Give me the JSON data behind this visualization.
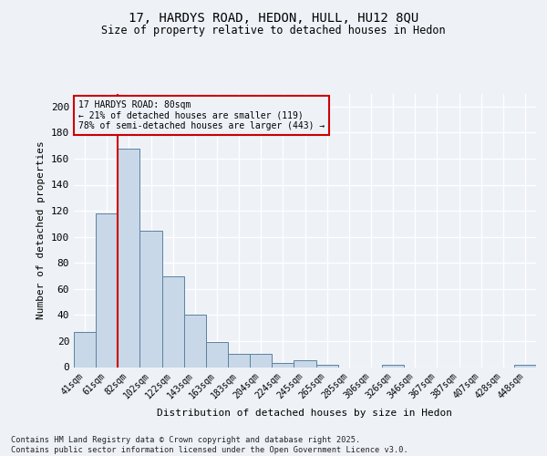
{
  "title_line1": "17, HARDYS ROAD, HEDON, HULL, HU12 8QU",
  "title_line2": "Size of property relative to detached houses in Hedon",
  "xlabel": "Distribution of detached houses by size in Hedon",
  "ylabel": "Number of detached properties",
  "categories": [
    "41sqm",
    "61sqm",
    "82sqm",
    "102sqm",
    "122sqm",
    "143sqm",
    "163sqm",
    "183sqm",
    "204sqm",
    "224sqm",
    "245sqm",
    "265sqm",
    "285sqm",
    "306sqm",
    "326sqm",
    "346sqm",
    "367sqm",
    "387sqm",
    "407sqm",
    "428sqm",
    "448sqm"
  ],
  "values": [
    27,
    118,
    168,
    105,
    70,
    40,
    19,
    10,
    10,
    3,
    5,
    2,
    0,
    0,
    2,
    0,
    0,
    0,
    0,
    0,
    2
  ],
  "bar_color": "#c8d8e8",
  "bar_edge_color": "#5a82a0",
  "vline_color": "#cc0000",
  "annotation_text": "17 HARDYS ROAD: 80sqm\n← 21% of detached houses are smaller (119)\n78% of semi-detached houses are larger (443) →",
  "annotation_box_color": "#cc0000",
  "ylim": [
    0,
    210
  ],
  "yticks": [
    0,
    20,
    40,
    60,
    80,
    100,
    120,
    140,
    160,
    180,
    200
  ],
  "footnote": "Contains HM Land Registry data © Crown copyright and database right 2025.\nContains public sector information licensed under the Open Government Licence v3.0.",
  "bg_color": "#eef2f7"
}
